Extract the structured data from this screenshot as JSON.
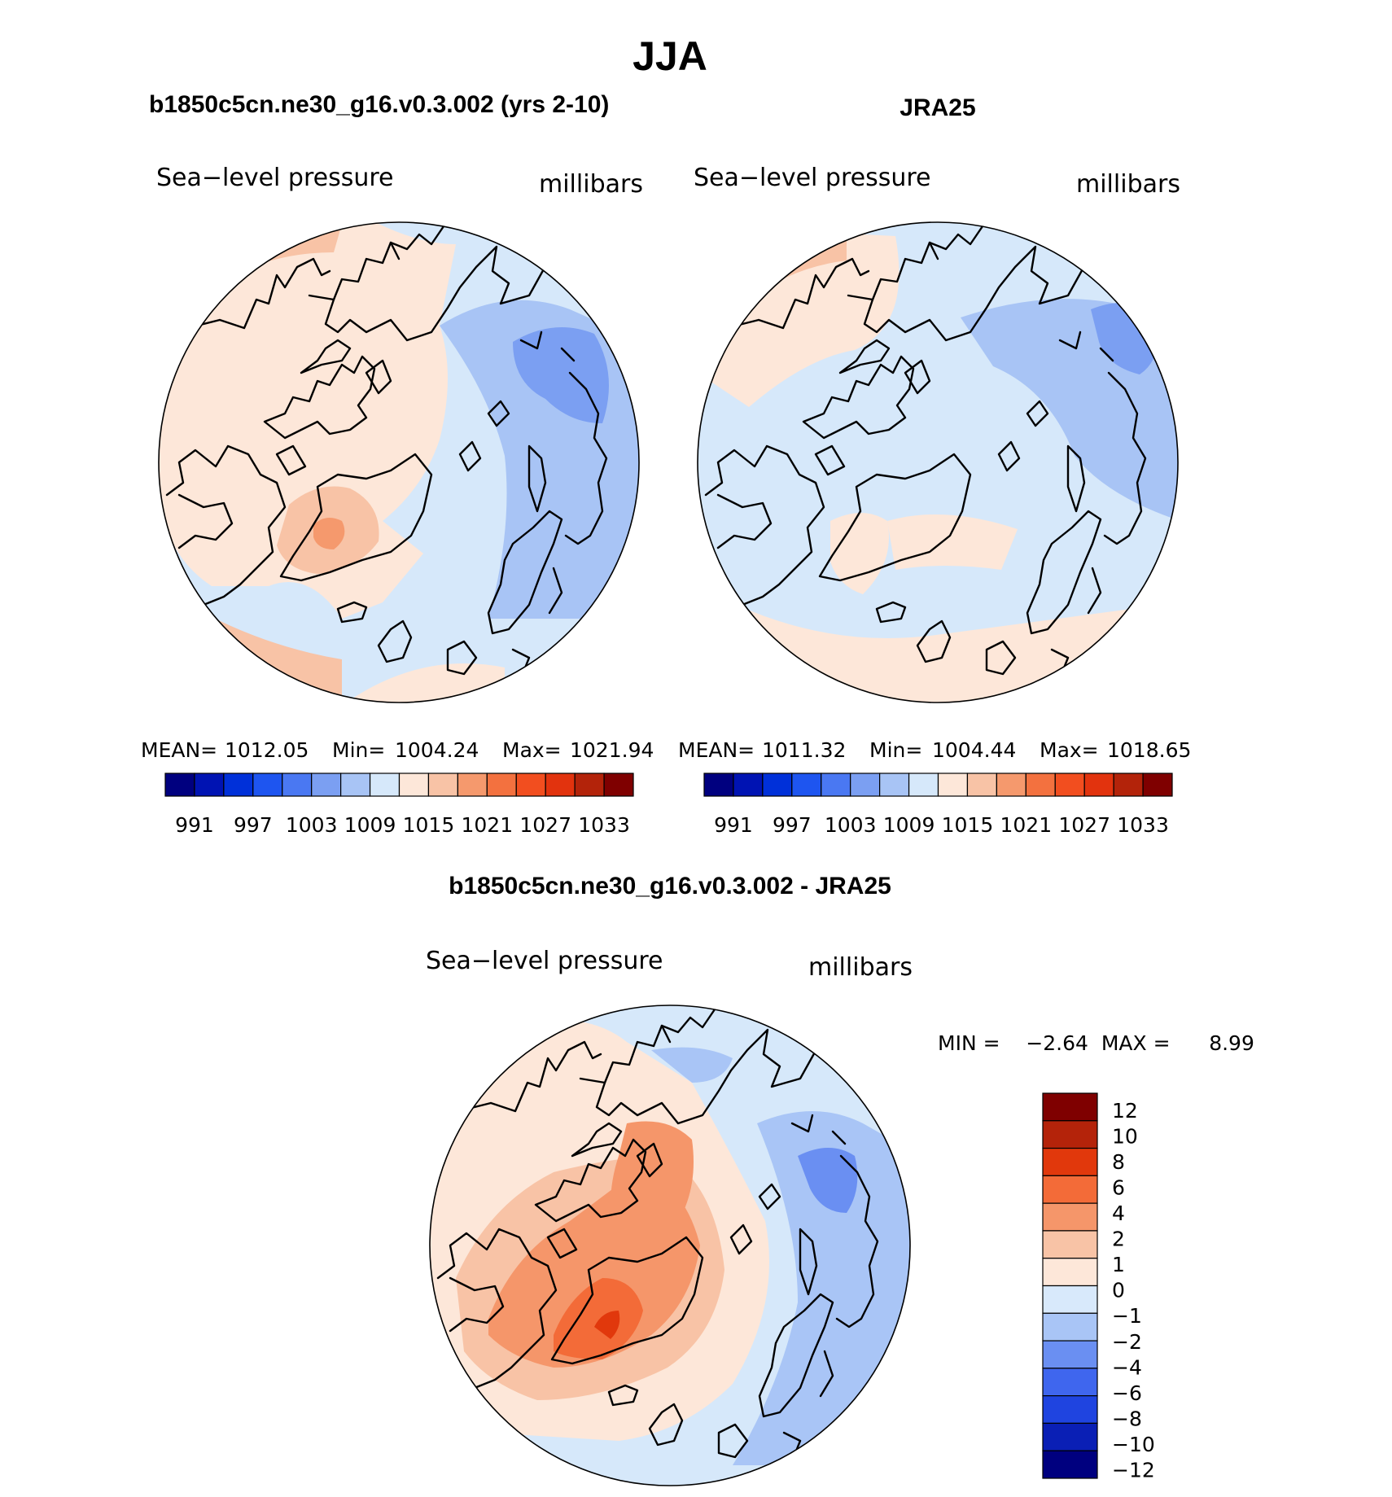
{
  "figure_title": "JJA",
  "colors": {
    "abs_palette": [
      "#00007f",
      "#0013b3",
      "#0030d9",
      "#1e55f0",
      "#4a78f2",
      "#7b9ff2",
      "#a8c4f5",
      "#d6e8fa",
      "#fde7d9",
      "#f8c3a6",
      "#f5996d",
      "#f3713f",
      "#f24e1f",
      "#e2330e",
      "#b3230a",
      "#7f0000"
    ],
    "diff_palette": [
      "#00007f",
      "#0a1fb5",
      "#1f44e0",
      "#3f66ee",
      "#6a8ff2",
      "#a9c5f6",
      "#d8e9fb",
      "#fde7d9",
      "#f8c3a6",
      "#f5966a",
      "#f36b38",
      "#e1380c",
      "#b4230a",
      "#7f0000"
    ]
  },
  "panels": {
    "model": {
      "heading": "b1850c5cn.ne30_g16.v0.3.002 (yrs 2-10)",
      "variable": "Sea−level pressure",
      "units": "millibars",
      "stats": {
        "mean_label": "MEAN=",
        "mean": "1012.05",
        "min_label": "Min=",
        "min": "1004.24",
        "max_label": "Max=",
        "max": "1021.94"
      }
    },
    "obs": {
      "heading": "JRA25",
      "variable": "Sea−level pressure",
      "units": "millibars",
      "stats": {
        "mean_label": "MEAN=",
        "mean": "1011.32",
        "min_label": "Min=",
        "min": "1004.44",
        "max_label": "Max=",
        "max": "1018.65"
      }
    },
    "diff": {
      "heading": "b1850c5cn.ne30_g16.v0.3.002 - JRA25",
      "variable": "Sea−level pressure",
      "units": "millibars",
      "stats_text": "MIN =    −2.64  MAX =      8.99"
    }
  },
  "abs_colorbar_labels": [
    "991",
    "997",
    "1003",
    "1009",
    "1015",
    "1021",
    "1027",
    "1033"
  ],
  "diff_colorbar_labels": [
    "12",
    "10",
    "8",
    "6",
    "4",
    "2",
    "1",
    "0",
    "−1",
    "−2",
    "−4",
    "−6",
    "−8",
    "−10",
    "−12"
  ]
}
